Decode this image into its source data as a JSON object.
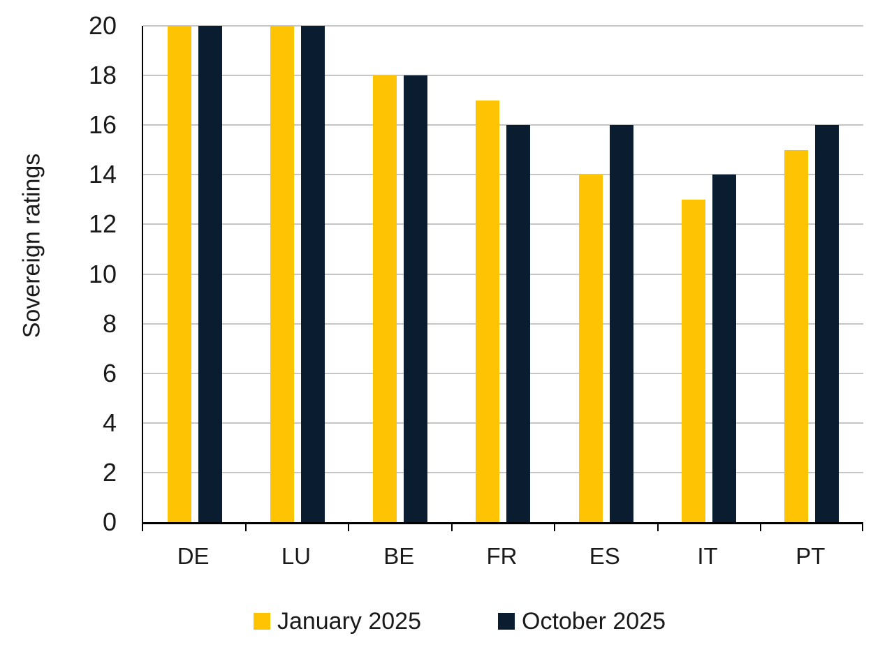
{
  "chart_data": {
    "type": "bar",
    "title": "",
    "xlabel": "",
    "ylabel": "Sovereign ratings",
    "categories": [
      "DE",
      "LU",
      "BE",
      "FR",
      "ES",
      "IT",
      "PT"
    ],
    "series": [
      {
        "name": "January 2025",
        "color": "#FEC303",
        "values": [
          20,
          20,
          18,
          17,
          14,
          13,
          15
        ]
      },
      {
        "name": "October 2025",
        "color": "#0A1C30",
        "values": [
          20,
          20,
          18,
          16,
          16,
          14,
          16
        ]
      }
    ],
    "ylim": [
      0,
      20
    ],
    "yticks": [
      0,
      2,
      4,
      6,
      8,
      10,
      12,
      14,
      16,
      18,
      20
    ],
    "grid": "horizontal",
    "legend_position": "bottom",
    "colors": {
      "gridline": "#C5C5C5",
      "axis": "#000000",
      "text": "#1A1A1A",
      "background": "#FFFFFF"
    }
  }
}
